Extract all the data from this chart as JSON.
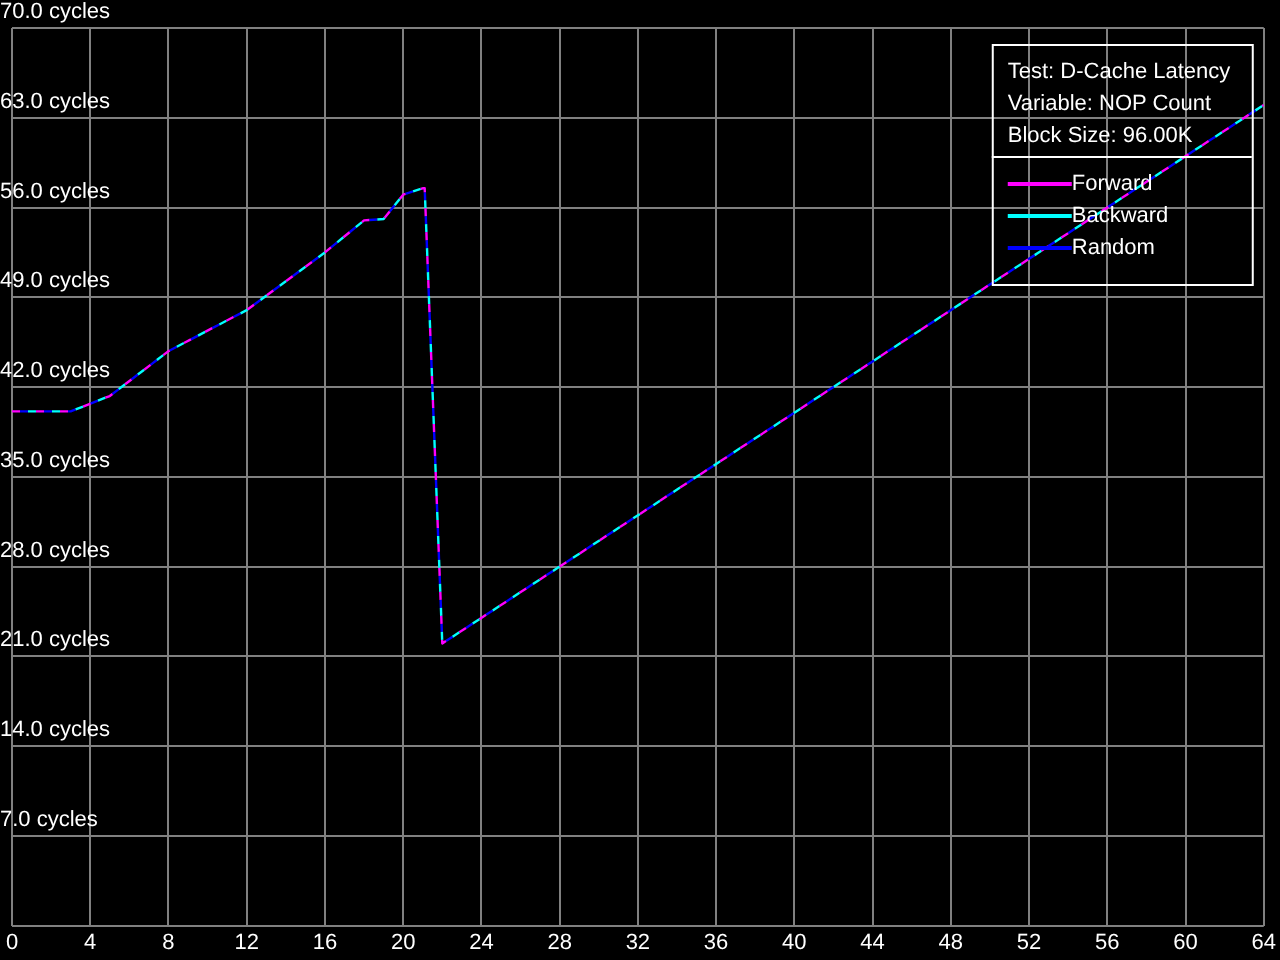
{
  "chart_data": {
    "type": "line",
    "annotations": [
      "Test: D-Cache Latency",
      "Variable: NOP Count",
      "Block Size: 96.00K"
    ],
    "x": [
      0,
      3,
      5,
      8,
      12,
      16,
      18,
      19,
      20,
      21,
      21.1,
      22,
      28,
      40,
      52,
      64
    ],
    "series": [
      {
        "name": "Forward",
        "color": "#ff00ff",
        "values": [
          40.1,
          40.1,
          41.3,
          44.8,
          48.0,
          52.5,
          55.0,
          55.1,
          57.0,
          57.5,
          57.5,
          22.0,
          28.0,
          40.0,
          52.0,
          64.0
        ]
      },
      {
        "name": "Backward",
        "color": "#00ffff",
        "values": [
          40.1,
          40.1,
          41.3,
          44.8,
          48.0,
          52.5,
          55.0,
          55.1,
          57.0,
          57.5,
          57.5,
          22.0,
          28.0,
          40.0,
          52.0,
          64.0
        ]
      },
      {
        "name": "Random",
        "color": "#0000ff",
        "values": [
          40.1,
          40.1,
          41.3,
          44.8,
          48.0,
          52.5,
          55.0,
          55.1,
          57.0,
          57.5,
          57.5,
          22.0,
          28.0,
          40.0,
          52.0,
          64.0
        ]
      }
    ],
    "xlim": [
      0,
      64
    ],
    "xticks": [
      0,
      4,
      8,
      12,
      16,
      20,
      24,
      28,
      32,
      36,
      40,
      44,
      48,
      52,
      56,
      60,
      64
    ],
    "ylim": [
      0,
      70
    ],
    "yticks": [
      {
        "value": 0,
        "label": null
      },
      {
        "value": 7,
        "label": "7.0 cycles"
      },
      {
        "value": 14,
        "label": "14.0 cycles"
      },
      {
        "value": 21,
        "label": "21.0 cycles"
      },
      {
        "value": 28,
        "label": "28.0 cycles"
      },
      {
        "value": 35,
        "label": "35.0 cycles"
      },
      {
        "value": 42,
        "label": "42.0 cycles"
      },
      {
        "value": 49,
        "label": "49.0 cycles"
      },
      {
        "value": 56,
        "label": "56.0 cycles"
      },
      {
        "value": 63,
        "label": "63.0 cycles"
      },
      {
        "value": 70,
        "label": "70.0 cycles"
      }
    ],
    "grid": true,
    "legend": "top right",
    "marker": "none",
    "line_style": "dashed"
  }
}
